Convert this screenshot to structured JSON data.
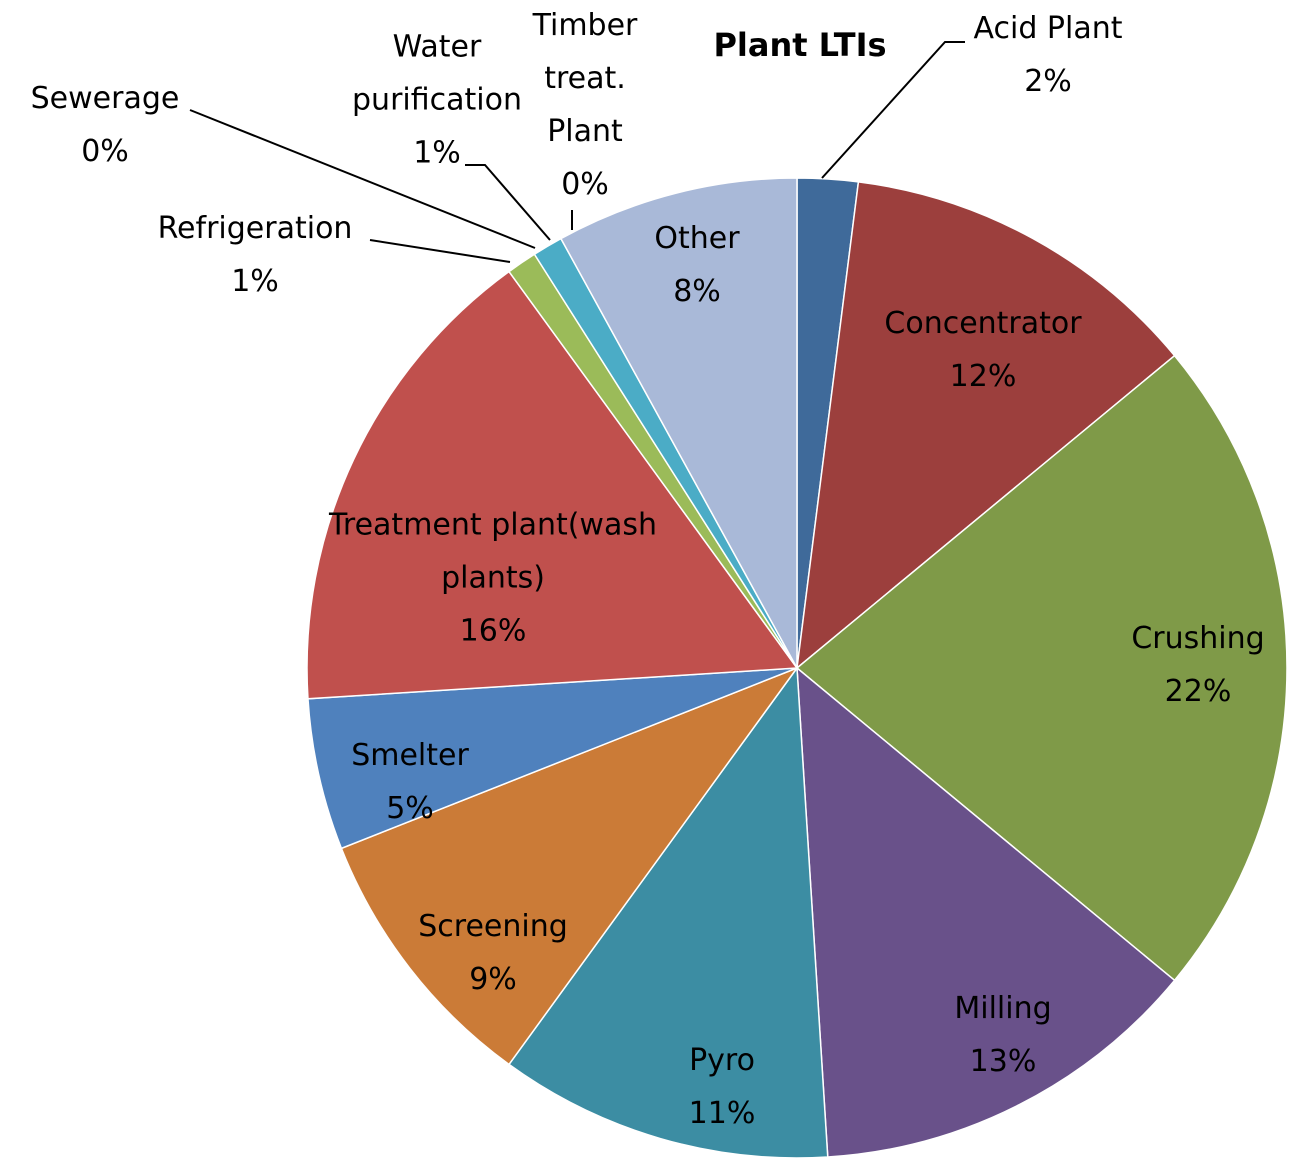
{
  "chart_data": {
    "type": "pie",
    "title": "Plant LTIs",
    "categories": [
      "Acid Plant",
      "Concentrator",
      "Crushing",
      "Milling",
      "Pyro",
      "Screening",
      "Smelter",
      "Treatment plant(wash plants)",
      "Refrigeration",
      "Sewerage",
      "Water purification",
      "Timber treat. Plant",
      "Other"
    ],
    "values": [
      2,
      12,
      22,
      13,
      11,
      9,
      5,
      16,
      1,
      0,
      1,
      0,
      8
    ],
    "value_labels": [
      "2%",
      "12%",
      "22%",
      "13%",
      "11%",
      "9%",
      "5%",
      "16%",
      "1%",
      "0%",
      "1%",
      "0%",
      "8%"
    ],
    "colors": [
      "#3f6a9a",
      "#9c3f3d",
      "#7f9a48",
      "#69518a",
      "#3c8da3",
      "#cb7b37",
      "#4f81bd",
      "#c0504d",
      "#9bbb59",
      "#8064a2",
      "#4bacc6",
      "#f79646",
      "#a9b9d8"
    ]
  }
}
